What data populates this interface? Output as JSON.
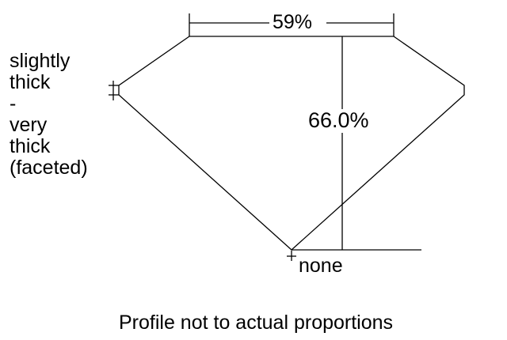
{
  "diagram": {
    "table_percent": "59%",
    "depth_percent": "66.0%",
    "girdle_label_lines": [
      "slightly",
      "thick",
      "-",
      "very",
      "thick",
      "(faceted)"
    ],
    "culet_label": "none",
    "caption": "Profile not to actual proportions",
    "line_color": "#000000"
  }
}
